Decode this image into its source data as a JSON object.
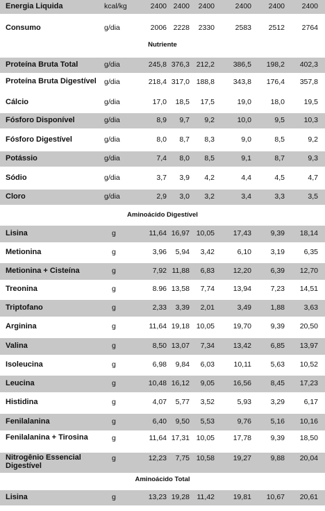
{
  "table": {
    "rows": [
      {
        "name": "Energia Liquida",
        "unit": "kcal/kg",
        "values": [
          "2400",
          "2400",
          "2400",
          "2400",
          "2400",
          "2400"
        ]
      },
      {
        "name": "Consumo",
        "unit": "g/dia",
        "values": [
          "2006",
          "2228",
          "2330",
          "2583",
          "2512",
          "2764"
        ]
      },
      {
        "section": "Nutriente"
      },
      {
        "name": "Proteína Bruta Total",
        "unit": "g/dia",
        "values": [
          "245,8",
          "376,3",
          "212,2",
          "386,5",
          "198,2",
          "402,3"
        ]
      },
      {
        "name": "Proteína Bruta Digestível",
        "unit": "g/dia",
        "values": [
          "218,4",
          "317,0",
          "188,8",
          "343,8",
          "176,4",
          "357,8"
        ]
      },
      {
        "name": "Cálcio",
        "unit": "g/dia",
        "values": [
          "17,0",
          "18,5",
          "17,5",
          "19,0",
          "18,0",
          "19,5"
        ]
      },
      {
        "name": "Fósforo Disponível",
        "unit": "g/dia",
        "values": [
          "8,9",
          "9,7",
          "9,2",
          "10,0",
          "9,5",
          "10,3"
        ]
      },
      {
        "name": "Fósforo Digestível",
        "unit": "g/dia",
        "values": [
          "8,0",
          "8,7",
          "8,3",
          "9,0",
          "8,5",
          "9,2"
        ]
      },
      {
        "name": "Potássio",
        "unit": "g/dia",
        "values": [
          "7,4",
          "8,0",
          "8,5",
          "9,1",
          "8,7",
          "9,3"
        ]
      },
      {
        "name": "Sódio",
        "unit": "g/dia",
        "values": [
          "3,7",
          "3,9",
          "4,2",
          "4,4",
          "4,5",
          "4,7"
        ]
      },
      {
        "name": "Cloro",
        "unit": "g/dia",
        "values": [
          "2,9",
          "3,0",
          "3,2",
          "3,4",
          "3,3",
          "3,5"
        ]
      },
      {
        "section": "Aminoácido Digestível"
      },
      {
        "name": "Lisina",
        "unit": "g",
        "values": [
          "11,64",
          "16,97",
          "10,05",
          "17,43",
          "9,39",
          "18,14"
        ]
      },
      {
        "name": "Metionina",
        "unit": "g",
        "values": [
          "3,96",
          "5,94",
          "3,42",
          "6,10",
          "3,19",
          "6,35"
        ]
      },
      {
        "name": "Metionina + Cisteína",
        "unit": "g",
        "values": [
          "7,92",
          "11,88",
          "6,83",
          "12,20",
          "6,39",
          "12,70"
        ]
      },
      {
        "name": "Treonina",
        "unit": "g",
        "values": [
          "8.96",
          "13,58",
          "7,74",
          "13,94",
          "7,23",
          "14,51"
        ]
      },
      {
        "name": "Triptofano",
        "unit": "g",
        "values": [
          "2,33",
          "3,39",
          "2,01",
          "3,49",
          "1,88",
          "3,63"
        ]
      },
      {
        "name": "Arginina",
        "unit": "g",
        "values": [
          "11,64",
          "19,18",
          "10,05",
          "19,70",
          "9,39",
          "20,50"
        ]
      },
      {
        "name": "Valina",
        "unit": "g",
        "values": [
          "8,50",
          "13,07",
          "7,34",
          "13,42",
          "6,85",
          "13,97"
        ]
      },
      {
        "name": "Isoleucina",
        "unit": "g",
        "values": [
          "6,98",
          "9,84",
          "6,03",
          "10,11",
          "5,63",
          "10,52"
        ]
      },
      {
        "name": "Leucina",
        "unit": "g",
        "values": [
          "10,48",
          "16,12",
          "9,05",
          "16,56",
          "8,45",
          "17,23"
        ]
      },
      {
        "name": "Histidina",
        "unit": "g",
        "values": [
          "4,07",
          "5,77",
          "3,52",
          "5,93",
          "3,29",
          "6,17"
        ]
      },
      {
        "name": "Fenilalanina",
        "unit": "g",
        "values": [
          "6,40",
          "9,50",
          "5,53",
          "9,76",
          "5,16",
          "10,16"
        ]
      },
      {
        "name": "Fenilalanina + Tirosina",
        "unit": "g",
        "values": [
          "11,64",
          "17,31",
          "10,05",
          "17,78",
          "9,39",
          "18,50"
        ]
      },
      {
        "name": "Nitrogênio Essencial Digestível",
        "unit": "g",
        "values": [
          "12,23",
          "7,75",
          "10,58",
          "19,27",
          "9,88",
          "20,04"
        ]
      },
      {
        "section": "Aminoácido Total"
      },
      {
        "name": "Lisina",
        "unit": "g",
        "values": [
          "13,23",
          "19,28",
          "11,42",
          "19,81",
          "10,67",
          "20,61"
        ]
      }
    ]
  }
}
